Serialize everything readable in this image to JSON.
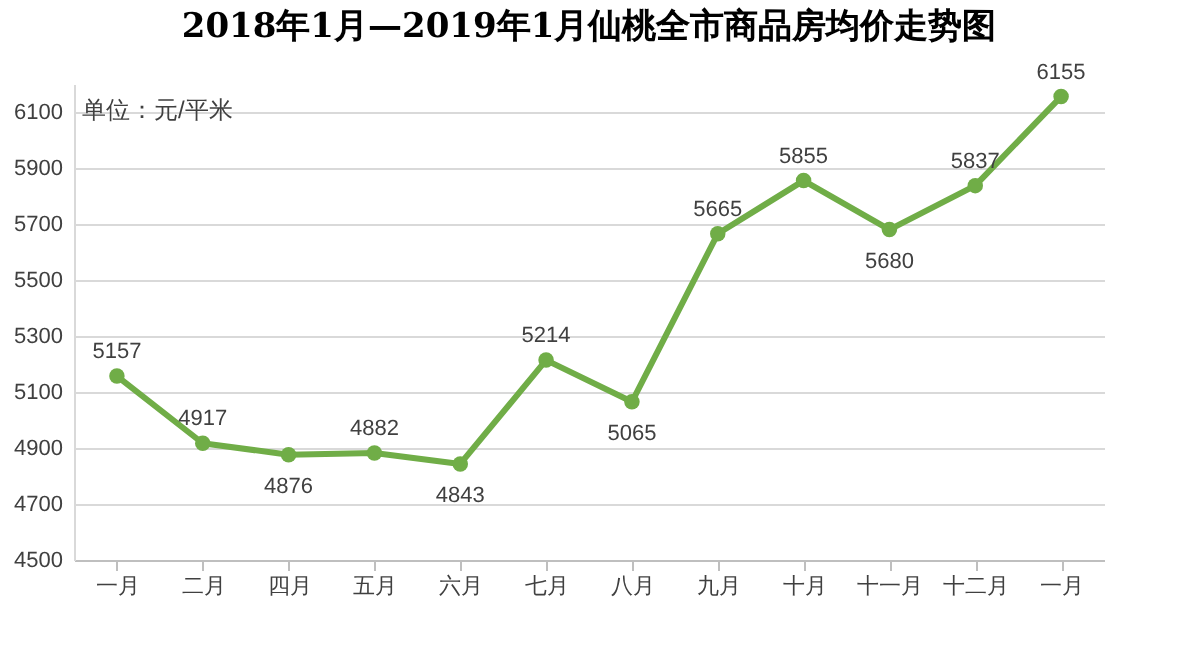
{
  "chart_data": {
    "type": "line",
    "title": "2018年1月—2019年1月仙桃全市商品房均价走势图",
    "annotations": [
      "单位：元/平米"
    ],
    "categories": [
      "一月",
      "二月",
      "四月",
      "五月",
      "六月",
      "七月",
      "八月",
      "九月",
      "十月",
      "十一月",
      "十二月",
      "一月"
    ],
    "series": [
      {
        "color": "#70ad47",
        "values": [
          5157,
          4917,
          4876,
          4882,
          4843,
          5214,
          5065,
          5665,
          5855,
          5680,
          5837,
          6155
        ]
      }
    ],
    "ylim": [
      4500,
      6200
    ],
    "yticks": [
      4500,
      4700,
      4900,
      5100,
      5300,
      5500,
      5700,
      5900,
      6100
    ],
    "grid": "y",
    "marker": "circle",
    "line_style": "solid",
    "data_labels": true
  }
}
